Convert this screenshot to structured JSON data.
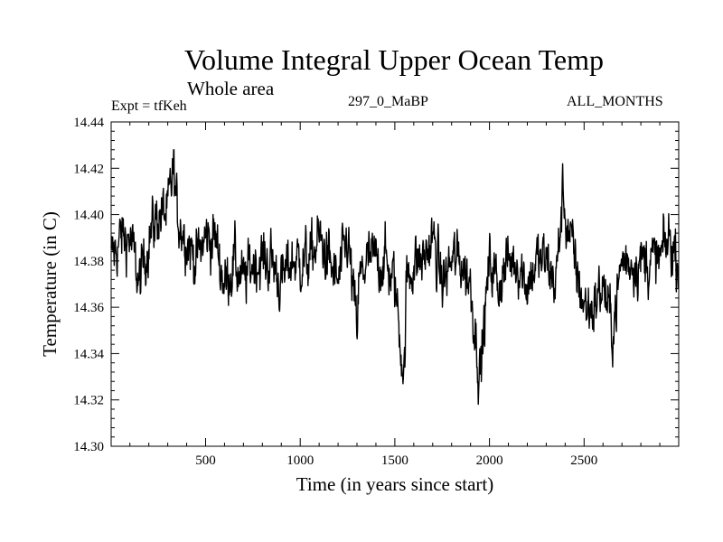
{
  "header": {
    "title": "Volume Integral Upper Ocean Temp",
    "subtitle": "Whole area",
    "experiment": "Expt = tfKeh",
    "run_label": "297_0_MaBP",
    "months_label": "ALL_MONTHS"
  },
  "chart_data": {
    "type": "line",
    "title": "Volume Integral Upper Ocean Temp",
    "subtitle": "Whole area",
    "xlabel": "Time (in years since start)",
    "ylabel": "Temperature (in C)",
    "xlim": [
      1,
      3000
    ],
    "ylim": [
      14.3,
      14.44
    ],
    "xticks": [
      500,
      1000,
      1500,
      2000,
      2500
    ],
    "xtick_labels": [
      "500",
      "1000",
      "1500",
      "2000",
      "2500"
    ],
    "yticks": [
      14.3,
      14.32,
      14.34,
      14.36,
      14.38,
      14.4,
      14.42,
      14.44
    ],
    "ytick_labels": [
      "14.30",
      "14.32",
      "14.34",
      "14.36",
      "14.38",
      "14.40",
      "14.42",
      "14.44"
    ],
    "grid": false,
    "line_color": "#000000",
    "series": [
      {
        "x": [
          0,
          50,
          100,
          150,
          200,
          250,
          300,
          330,
          350,
          400,
          450,
          500,
          550,
          600,
          650,
          700,
          750,
          800,
          850,
          900,
          950,
          1000,
          1050,
          1100,
          1150,
          1200,
          1250,
          1300,
          1310,
          1350,
          1400,
          1450,
          1500,
          1550,
          1560,
          1600,
          1650,
          1700,
          1750,
          1800,
          1850,
          1900,
          1950,
          2000,
          2050,
          2100,
          2150,
          2200,
          2250,
          2300,
          2350,
          2390,
          2400,
          2450,
          2500,
          2550,
          2600,
          2650,
          2700,
          2750,
          2800,
          2850,
          2900,
          2950,
          3000
        ],
        "y": [
          14.38,
          14.39,
          14.39,
          14.37,
          14.39,
          14.4,
          14.4,
          14.42,
          14.4,
          14.39,
          14.38,
          14.39,
          14.39,
          14.37,
          14.38,
          14.37,
          14.38,
          14.38,
          14.38,
          14.37,
          14.38,
          14.38,
          14.38,
          14.39,
          14.38,
          14.37,
          14.39,
          14.35,
          14.37,
          14.38,
          14.38,
          14.38,
          14.37,
          14.33,
          14.37,
          14.38,
          14.38,
          14.39,
          14.37,
          14.38,
          14.38,
          14.37,
          14.33,
          14.38,
          14.37,
          14.38,
          14.38,
          14.37,
          14.38,
          14.38,
          14.37,
          14.41,
          14.4,
          14.38,
          14.36,
          14.36,
          14.37,
          14.35,
          14.38,
          14.38,
          14.38,
          14.38,
          14.38,
          14.39,
          14.38
        ]
      }
    ]
  }
}
